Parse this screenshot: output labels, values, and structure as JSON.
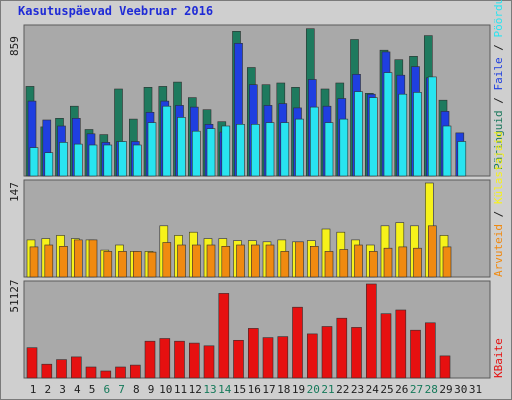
{
  "title": "Kasutuspäevad Veebruar 2016",
  "colors": {
    "visits": "#1e7a5e",
    "files": "#1f3fe0",
    "pages": "#28e4f0",
    "kbytes": "#e61010",
    "hits": "#f6f21a",
    "sites": "#f08a10",
    "weekend_label": "#157a5a",
    "weekday_label": "#202020",
    "ymax_label": "#202020"
  },
  "legend": {
    "top": {
      "visits": "Päringuid",
      "slash1": " / ",
      "files": "Faile",
      "slash2": " / ",
      "pages": "Pöördumisi"
    },
    "middle": {
      "sites": "Arvuteid",
      "slash": " / ",
      "hits": "Külastajaid"
    },
    "bottom": {
      "kbytes": "KBaite"
    }
  },
  "chart_data": {
    "type": "bar",
    "categories": [
      "1",
      "2",
      "3",
      "4",
      "5",
      "6",
      "7",
      "8",
      "9",
      "10",
      "11",
      "12",
      "13",
      "14",
      "15",
      "16",
      "17",
      "18",
      "19",
      "20",
      "21",
      "22",
      "23",
      "24",
      "25",
      "26",
      "27",
      "28",
      "29",
      "30",
      "31"
    ],
    "weekend_days": [
      6,
      7,
      13,
      14,
      20,
      21,
      27,
      28
    ],
    "top": {
      "ymax_label": "859",
      "ymax": 859,
      "series": [
        {
          "name": "Päringuid",
          "key": "visits",
          "values": [
            520,
            285,
            335,
            405,
            270,
            240,
            505,
            330,
            515,
            520,
            545,
            455,
            385,
            315,
            840,
            630,
            530,
            540,
            515,
            855,
            505,
            540,
            792,
            480,
            730,
            675,
            695,
            815,
            440,
            0,
            0
          ]
        },
        {
          "name": "Faile",
          "key": "files",
          "values": [
            435,
            325,
            290,
            335,
            245,
            195,
            200,
            200,
            370,
            435,
            410,
            400,
            300,
            255,
            770,
            530,
            410,
            420,
            395,
            560,
            405,
            450,
            590,
            475,
            720,
            585,
            635,
            570,
            375,
            250,
            0
          ]
        },
        {
          "name": "Pöördumisi",
          "key": "pages",
          "values": [
            165,
            135,
            195,
            185,
            180,
            180,
            200,
            180,
            310,
            405,
            340,
            260,
            275,
            290,
            300,
            300,
            310,
            310,
            330,
            400,
            310,
            330,
            490,
            455,
            600,
            475,
            485,
            575,
            290,
            200,
            0
          ]
        }
      ]
    },
    "middle": {
      "ymax_label": "147",
      "ymax": 147,
      "series": [
        {
          "name": "Külastajaid",
          "key": "hits",
          "values": [
            58,
            60,
            65,
            60,
            58,
            42,
            50,
            40,
            40,
            80,
            65,
            70,
            60,
            60,
            57,
            57,
            55,
            58,
            55,
            57,
            75,
            70,
            58,
            50,
            80,
            85,
            80,
            147,
            65,
            0,
            0
          ]
        },
        {
          "name": "Arvuteid",
          "key": "sites",
          "values": [
            47,
            50,
            48,
            58,
            58,
            40,
            40,
            40,
            39,
            54,
            50,
            50,
            50,
            48,
            50,
            50,
            50,
            40,
            55,
            48,
            40,
            43,
            50,
            40,
            45,
            47,
            45,
            80,
            47,
            0,
            0
          ]
        }
      ]
    },
    "bottom": {
      "ymax_label": "51127",
      "ymax": 51127,
      "series": [
        {
          "name": "KBaite",
          "key": "kbytes",
          "values": [
            16500,
            7500,
            10000,
            11500,
            6000,
            3800,
            6000,
            7000,
            20000,
            21500,
            20000,
            19000,
            17500,
            46000,
            20500,
            27000,
            22000,
            22500,
            38500,
            24000,
            28000,
            32500,
            27500,
            51127,
            35000,
            37000,
            26000,
            30000,
            12000,
            0,
            0
          ]
        }
      ]
    },
    "legend_position": "right"
  }
}
